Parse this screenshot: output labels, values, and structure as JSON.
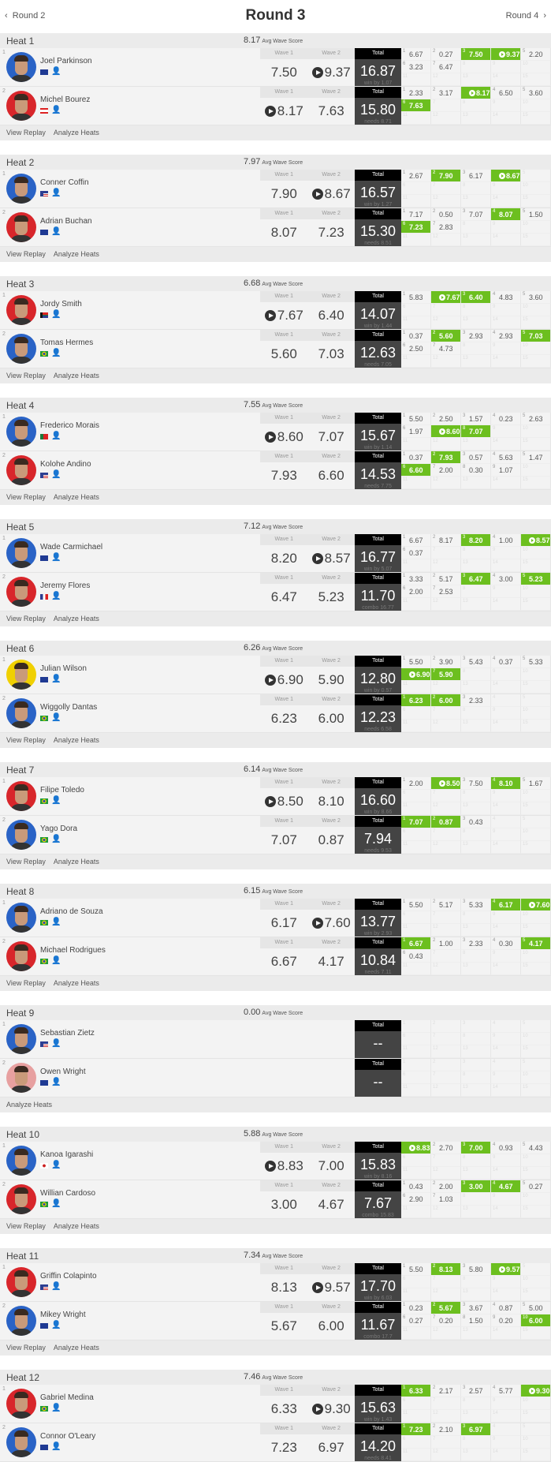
{
  "nav": {
    "prev": "Round 2",
    "title": "Round 3",
    "next": "Round 4"
  },
  "labels": {
    "wave1": "Wave 1",
    "wave2": "Wave 2",
    "total": "Total",
    "avg": "Avg Wave Score",
    "view_replay": "View Replay",
    "analyze": "Analyze Heats",
    "dash": "--"
  },
  "colors": {
    "best_wave": "#6cbf1f",
    "total_header": "#000000",
    "total_body": "#444444"
  },
  "heats": [
    {
      "name": "Heat 1",
      "avg": "8.17",
      "replay": true,
      "surfers": [
        {
          "rank": "1",
          "name": "Joel Parkinson",
          "country": "AUS",
          "avatar": "#2a63c6",
          "w1": "7.50",
          "w2": "9.37",
          "w2v": true,
          "total": "16.87",
          "sub": "win by 1.07",
          "waves": [
            {
              "s": "6.67"
            },
            {
              "s": "0.27"
            },
            {
              "s": "7.50",
              "b": true
            },
            {
              "s": "9.37",
              "b": true,
              "v": true
            },
            {
              "s": "2.20"
            },
            {
              "s": "3.23"
            },
            {
              "s": "6.47"
            }
          ]
        },
        {
          "rank": "2",
          "name": "Michel Bourez",
          "country": "PYF",
          "avatar": "#d8262b",
          "w1": "8.17",
          "w1v": true,
          "w2": "7.63",
          "total": "15.80",
          "sub": "needs 8.71",
          "waves": [
            {
              "s": "2.33"
            },
            {
              "s": "3.17"
            },
            {
              "s": "8.17",
              "b": true,
              "v": true
            },
            {
              "s": "6.50"
            },
            {
              "s": "3.60"
            },
            {
              "s": "7.63",
              "b": true
            }
          ]
        }
      ]
    },
    {
      "name": "Heat 2",
      "avg": "7.97",
      "replay": true,
      "surfers": [
        {
          "rank": "1",
          "name": "Conner Coffin",
          "country": "USA",
          "avatar": "#2a63c6",
          "w1": "7.90",
          "w2": "8.67",
          "w2v": true,
          "total": "16.57",
          "sub": "win by 1.27",
          "waves": [
            {
              "s": "2.67"
            },
            {
              "s": "7.90",
              "b": true
            },
            {
              "s": "6.17"
            },
            {
              "s": "8.67",
              "b": true,
              "v": true
            }
          ]
        },
        {
          "rank": "2",
          "name": "Adrian Buchan",
          "country": "AUS",
          "avatar": "#d8262b",
          "w1": "8.07",
          "w2": "7.23",
          "total": "15.30",
          "sub": "needs 8.51",
          "waves": [
            {
              "s": "7.17"
            },
            {
              "s": "0.50"
            },
            {
              "s": "7.07"
            },
            {
              "s": "8.07",
              "b": true
            },
            {
              "s": "1.50"
            },
            {
              "s": "7.23",
              "b": true
            },
            {
              "s": "2.83"
            }
          ]
        }
      ]
    },
    {
      "name": "Heat 3",
      "avg": "6.68",
      "replay": true,
      "surfers": [
        {
          "rank": "1",
          "name": "Jordy Smith",
          "country": "ZAF",
          "avatar": "#d8262b",
          "w1": "7.67",
          "w1v": true,
          "w2": "6.40",
          "total": "14.07",
          "sub": "win by 1.44",
          "waves": [
            {
              "s": "5.83"
            },
            {
              "s": "7.67",
              "b": true,
              "v": true
            },
            {
              "s": "6.40",
              "b": true
            },
            {
              "s": "4.83"
            },
            {
              "s": "3.60"
            }
          ]
        },
        {
          "rank": "2",
          "name": "Tomas Hermes",
          "country": "BRA",
          "avatar": "#2a63c6",
          "w1": "5.60",
          "w2": "7.03",
          "total": "12.63",
          "sub": "needs 7.05",
          "waves": [
            {
              "s": "0.37"
            },
            {
              "s": "5.60",
              "b": true
            },
            {
              "s": "2.93"
            },
            {
              "s": "2.93"
            },
            {
              "s": "7.03",
              "b": true
            },
            {
              "s": "2.50"
            },
            {
              "s": "4.73"
            }
          ]
        }
      ]
    },
    {
      "name": "Heat 4",
      "avg": "7.55",
      "replay": true,
      "surfers": [
        {
          "rank": "1",
          "name": "Frederico Morais",
          "country": "PRT",
          "avatar": "#2a63c6",
          "w1": "8.60",
          "w1v": true,
          "w2": "7.07",
          "total": "15.67",
          "sub": "win by 1.14",
          "waves": [
            {
              "s": "5.50"
            },
            {
              "s": "2.50"
            },
            {
              "s": "1.57"
            },
            {
              "s": "0.23"
            },
            {
              "s": "2.63"
            },
            {
              "s": "1.97"
            },
            {
              "s": "8.60",
              "b": true,
              "v": true
            },
            {
              "s": "7.07",
              "b": true
            }
          ]
        },
        {
          "rank": "2",
          "name": "Kolohe Andino",
          "country": "USA",
          "avatar": "#d8262b",
          "w1": "7.93",
          "w2": "6.60",
          "total": "14.53",
          "sub": "needs 7.75",
          "waves": [
            {
              "s": "0.37"
            },
            {
              "s": "7.93",
              "b": true
            },
            {
              "s": "0.57"
            },
            {
              "s": "5.63"
            },
            {
              "s": "1.47"
            },
            {
              "s": "6.60",
              "b": true
            },
            {
              "s": "2.00"
            },
            {
              "s": "0.30"
            },
            {
              "s": "1.07"
            }
          ]
        }
      ]
    },
    {
      "name": "Heat 5",
      "avg": "7.12",
      "replay": true,
      "surfers": [
        {
          "rank": "1",
          "name": "Wade Carmichael",
          "country": "AUS",
          "avatar": "#2a63c6",
          "w1": "8.20",
          "w2": "8.57",
          "w2v": true,
          "total": "16.77",
          "sub": "win by 5.07",
          "waves": [
            {
              "s": "6.67"
            },
            {
              "s": "8.17"
            },
            {
              "s": "8.20",
              "b": true
            },
            {
              "s": "1.00"
            },
            {
              "s": "8.57",
              "b": true,
              "v": true
            },
            {
              "s": "0.37"
            }
          ]
        },
        {
          "rank": "2",
          "name": "Jeremy Flores",
          "country": "FRA",
          "avatar": "#d8262b",
          "w1": "6.47",
          "w2": "5.23",
          "total": "11.70",
          "sub": "combo 16.77",
          "waves": [
            {
              "s": "3.33"
            },
            {
              "s": "5.17"
            },
            {
              "s": "6.47",
              "b": true
            },
            {
              "s": "3.00"
            },
            {
              "s": "5.23",
              "b": true
            },
            {
              "s": "2.00"
            },
            {
              "s": "2.53"
            }
          ]
        }
      ]
    },
    {
      "name": "Heat 6",
      "avg": "6.26",
      "replay": true,
      "surfers": [
        {
          "rank": "1",
          "name": "Julian Wilson",
          "country": "AUS",
          "avatar": "#f0d000",
          "w1": "6.90",
          "w1v": true,
          "w2": "5.90",
          "total": "12.80",
          "sub": "win by 0.57",
          "waves": [
            {
              "s": "5.50"
            },
            {
              "s": "3.90"
            },
            {
              "s": "5.43"
            },
            {
              "s": "0.37"
            },
            {
              "s": "5.33"
            },
            {
              "s": "6.90",
              "b": true,
              "v": true
            },
            {
              "s": "5.90",
              "b": true
            }
          ]
        },
        {
          "rank": "2",
          "name": "Wiggolly Dantas",
          "country": "BRA",
          "avatar": "#2a63c6",
          "w1": "6.23",
          "w2": "6.00",
          "total": "12.23",
          "sub": "needs 6.58",
          "waves": [
            {
              "s": "6.23",
              "b": true
            },
            {
              "s": "6.00",
              "b": true
            },
            {
              "s": "2.33"
            }
          ]
        }
      ]
    },
    {
      "name": "Heat 7",
      "avg": "6.14",
      "replay": true,
      "surfers": [
        {
          "rank": "1",
          "name": "Filipe Toledo",
          "country": "BRA",
          "avatar": "#d8262b",
          "w1": "8.50",
          "w1v": true,
          "w2": "8.10",
          "total": "16.60",
          "sub": "win by 8.66",
          "waves": [
            {
              "s": "2.00"
            },
            {
              "s": "8.50",
              "b": true,
              "v": true
            },
            {
              "s": "7.50"
            },
            {
              "s": "8.10",
              "b": true
            },
            {
              "s": "1.67"
            }
          ]
        },
        {
          "rank": "2",
          "name": "Yago Dora",
          "country": "BRA",
          "avatar": "#2a63c6",
          "w1": "7.07",
          "w2": "0.87",
          "total": "7.94",
          "sub": "needs 9.53",
          "waves": [
            {
              "s": "7.07",
              "b": true
            },
            {
              "s": "0.87",
              "b": true
            },
            {
              "s": "0.43"
            }
          ]
        }
      ]
    },
    {
      "name": "Heat 8",
      "avg": "6.15",
      "replay": true,
      "surfers": [
        {
          "rank": "1",
          "name": "Adriano de Souza",
          "country": "BRA",
          "avatar": "#2a63c6",
          "w1": "6.17",
          "w2": "7.60",
          "w2v": true,
          "total": "13.77",
          "sub": "win by 2.93",
          "waves": [
            {
              "s": "5.50"
            },
            {
              "s": "5.17"
            },
            {
              "s": "5.33"
            },
            {
              "s": "6.17",
              "b": true
            },
            {
              "s": "7.60",
              "b": true,
              "v": true
            }
          ]
        },
        {
          "rank": "2",
          "name": "Michael Rodrigues",
          "country": "BRA",
          "avatar": "#d8262b",
          "w1": "6.67",
          "w2": "4.17",
          "total": "10.84",
          "sub": "needs 7.11",
          "waves": [
            {
              "s": "6.67",
              "b": true
            },
            {
              "s": "1.00"
            },
            {
              "s": "2.33"
            },
            {
              "s": "0.30"
            },
            {
              "s": "4.17",
              "b": true
            },
            {
              "s": "0.43"
            }
          ]
        }
      ]
    },
    {
      "name": "Heat 9",
      "avg": "0.00",
      "replay": false,
      "surfers": [
        {
          "rank": "1",
          "name": "Sebastian Zietz",
          "country": "USA",
          "avatar": "#2a63c6",
          "total": "--",
          "waves": []
        },
        {
          "rank": "2",
          "name": "Owen Wright",
          "country": "AUS",
          "avatar": "#e7a0a0",
          "total": "--",
          "waves": []
        }
      ]
    },
    {
      "name": "Heat 10",
      "avg": "5.88",
      "replay": true,
      "surfers": [
        {
          "rank": "1",
          "name": "Kanoa Igarashi",
          "country": "JPN",
          "avatar": "#2a63c6",
          "w1": "8.83",
          "w1v": true,
          "w2": "7.00",
          "total": "15.83",
          "sub": "win by 8.16",
          "waves": [
            {
              "s": "8.83",
              "b": true,
              "v": true
            },
            {
              "s": "2.70"
            },
            {
              "s": "7.00",
              "b": true
            },
            {
              "s": "0.93"
            },
            {
              "s": "4.43"
            }
          ]
        },
        {
          "rank": "2",
          "name": "Willian Cardoso",
          "country": "BRA",
          "avatar": "#d8262b",
          "w1": "3.00",
          "w2": "4.67",
          "total": "7.67",
          "sub": "combo 15.83",
          "waves": [
            {
              "s": "0.43"
            },
            {
              "s": "2.00"
            },
            {
              "s": "3.00",
              "b": true
            },
            {
              "s": "4.67",
              "b": true
            },
            {
              "s": "0.27"
            },
            {
              "s": "2.90"
            },
            {
              "s": "1.03"
            }
          ]
        }
      ]
    },
    {
      "name": "Heat 11",
      "avg": "7.34",
      "replay": true,
      "surfers": [
        {
          "rank": "1",
          "name": "Griffin Colapinto",
          "country": "USA",
          "avatar": "#d8262b",
          "w1": "8.13",
          "w2": "9.57",
          "w2v": true,
          "total": "17.70",
          "sub": "win by 6.03",
          "waves": [
            {
              "s": "5.50"
            },
            {
              "s": "8.13",
              "b": true
            },
            {
              "s": "5.80"
            },
            {
              "s": "9.57",
              "b": true,
              "v": true
            }
          ]
        },
        {
          "rank": "2",
          "name": "Mikey Wright",
          "country": "AUS",
          "avatar": "#2a63c6",
          "w1": "5.67",
          "w2": "6.00",
          "total": "11.67",
          "sub": "combo 17.7",
          "waves": [
            {
              "s": "0.23"
            },
            {
              "s": "5.67",
              "b": true
            },
            {
              "s": "3.67"
            },
            {
              "s": "0.87"
            },
            {
              "s": "5.00"
            },
            {
              "s": "0.27"
            },
            {
              "s": "0.20"
            },
            {
              "s": "1.50"
            },
            {
              "s": "0.20"
            },
            {
              "s": "6.00",
              "b": true
            }
          ]
        }
      ]
    },
    {
      "name": "Heat 12",
      "avg": "7.46",
      "replay": true,
      "surfers": [
        {
          "rank": "1",
          "name": "Gabriel Medina",
          "country": "BRA",
          "avatar": "#d8262b",
          "w1": "6.33",
          "w2": "9.30",
          "w2v": true,
          "total": "15.63",
          "sub": "win by 1.43",
          "waves": [
            {
              "s": "6.33",
              "b": true
            },
            {
              "s": "2.17"
            },
            {
              "s": "2.57"
            },
            {
              "s": "5.77"
            },
            {
              "s": "9.30",
              "b": true,
              "v": true
            }
          ]
        },
        {
          "rank": "2",
          "name": "Connor O'Leary",
          "country": "AUS",
          "avatar": "#2a63c6",
          "w1": "7.23",
          "w2": "6.97",
          "total": "14.20",
          "sub": "needs 8.41",
          "waves": [
            {
              "s": "7.23",
              "b": true
            },
            {
              "s": "2.10"
            },
            {
              "s": "6.97",
              "b": true
            }
          ]
        }
      ]
    }
  ]
}
